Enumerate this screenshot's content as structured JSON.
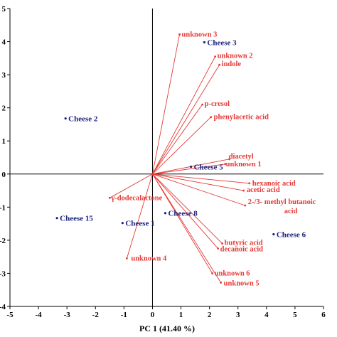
{
  "chart_data": {
    "type": "scatter",
    "subtype": "pca-biplot",
    "xlabel": "PC 1 (41.40 %)",
    "ylabel": "",
    "xlim": [
      -5,
      6
    ],
    "ylim": [
      -4,
      5
    ],
    "x_ticks": [
      -5,
      -4,
      -3,
      -2,
      -1,
      0,
      1,
      2,
      3,
      4,
      5,
      6
    ],
    "y_ticks": [
      -4,
      -3,
      -2,
      -1,
      0,
      1,
      2,
      3,
      4,
      5
    ],
    "grid": false,
    "colors": {
      "samples": "#1a237e",
      "loadings": "#e53935",
      "axes": "#000000"
    },
    "samples": [
      {
        "label": "Cheese 2",
        "x": -3.05,
        "y": 1.68
      },
      {
        "label": "Cheese 3",
        "x": 1.82,
        "y": 3.98
      },
      {
        "label": "Cheese 5",
        "x": 1.35,
        "y": 0.22
      },
      {
        "label": "Cheese 15",
        "x": -3.35,
        "y": -1.33
      },
      {
        "label": "Cheese 1",
        "x": -1.05,
        "y": -1.48
      },
      {
        "label": "Cheese 8",
        "x": 0.45,
        "y": -1.18
      },
      {
        "label": "Cheese 6",
        "x": 4.25,
        "y": -1.82
      }
    ],
    "loadings": [
      {
        "label": "unknown 3",
        "x": 0.95,
        "y": 4.22
      },
      {
        "label": "unknown 2",
        "x": 2.2,
        "y": 3.55
      },
      {
        "label": "indole",
        "x": 2.35,
        "y": 3.3
      },
      {
        "label": "p-cresol",
        "x": 1.75,
        "y": 2.1
      },
      {
        "label": "phenylacetic acid",
        "x": 2.05,
        "y": 1.72
      },
      {
        "label": "diacetyl",
        "x": 2.7,
        "y": 0.45
      },
      {
        "label": "unknown 1",
        "x": 2.55,
        "y": 0.3
      },
      {
        "label": "hexanoic acid",
        "x": 3.4,
        "y": -0.28
      },
      {
        "label": "acetic acid",
        "x": 3.2,
        "y": -0.5
      },
      {
        "label": "2-/3- methyl butanoic acid",
        "x": 3.25,
        "y": -0.95
      },
      {
        "label": "γ-dodecalactone",
        "x": -1.5,
        "y": -0.72
      },
      {
        "label": "unknown 4",
        "x": -0.9,
        "y": -2.55
      },
      {
        "label": "butyric acid",
        "x": 2.45,
        "y": -2.1
      },
      {
        "label": "decanoic acid",
        "x": 2.3,
        "y": -2.25
      },
      {
        "label": "unknown 6",
        "x": 2.1,
        "y": -3.0
      },
      {
        "label": "unknown 5",
        "x": 2.4,
        "y": -3.28
      }
    ]
  }
}
